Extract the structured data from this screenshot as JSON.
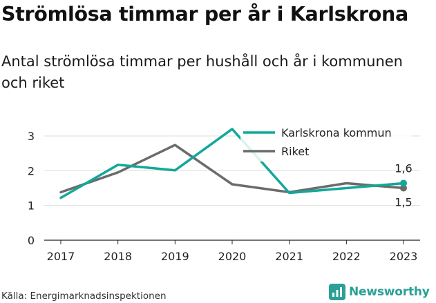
{
  "title": "Strömlösa timmar per år i Karlskrona",
  "subtitle": "Antal strömlösa timmar per hushåll och år i kommunen och riket",
  "source": "Källa: Energimarknadsinspektionen",
  "brand": "Newsworthy",
  "colors": {
    "accent": "#12a89b",
    "secondary": "#6b6b6b",
    "grid": "#dddddd",
    "brand": "#2aa096"
  },
  "chart_data": {
    "type": "line",
    "x": [
      "2017",
      "2018",
      "2019",
      "2020",
      "2021",
      "2022",
      "2023"
    ],
    "series": [
      {
        "name": "Karlskrona kommun",
        "color": "#12a89b",
        "values": [
          1.22,
          2.17,
          2.01,
          3.2,
          1.36,
          1.5,
          1.64
        ]
      },
      {
        "name": "Riket",
        "color": "#6b6b6b",
        "values": [
          1.38,
          1.95,
          2.74,
          1.61,
          1.38,
          1.64,
          1.5
        ]
      }
    ],
    "yticks": [
      0,
      1,
      2,
      3
    ],
    "ylim": [
      0,
      3.3
    ],
    "end_labels": [
      "1,6",
      "1,5"
    ],
    "legend_position": "top-right",
    "grid": true
  }
}
